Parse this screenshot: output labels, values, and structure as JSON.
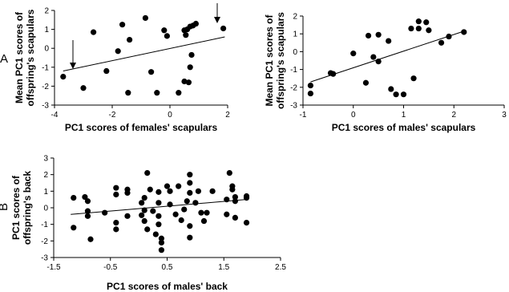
{
  "chart_data": [
    {
      "type": "scatter",
      "panel_label": "A",
      "xlabel": "PC1 scores of females' scapulars",
      "ylabel": [
        "Mean PC1 scores of",
        "offspring's scapulars"
      ],
      "xlim": [
        -4,
        2
      ],
      "xticks": [
        -4,
        -2,
        0,
        2
      ],
      "ylim": [
        -3,
        2
      ],
      "yticks": [
        -3,
        -2,
        -1,
        0,
        1,
        2
      ],
      "color": "#000000",
      "x": [
        -3.7,
        -3.0,
        -2.65,
        -2.2,
        -1.8,
        -1.65,
        -1.4,
        -1.45,
        -0.85,
        -0.65,
        -0.45,
        -0.2,
        -0.1,
        0.3,
        0.5,
        0.55,
        0.6,
        0.5,
        0.65,
        0.7,
        0.8,
        0.9,
        0.75,
        0.7,
        1.85
      ],
      "values": [
        -1.5,
        -2.1,
        0.85,
        -1.2,
        -0.15,
        1.25,
        0.45,
        -2.35,
        1.6,
        -1.25,
        -2.35,
        0.95,
        0.65,
        -2.35,
        0.95,
        0.7,
        1.0,
        -1.75,
        -1.8,
        1.15,
        1.2,
        1.3,
        -0.35,
        -1.0,
        1.05
      ],
      "trend_line": {
        "x": [
          -3.7,
          1.9
        ],
        "values": [
          -1.2,
          0.6
        ]
      }
    },
    {
      "type": "scatter",
      "xlabel": "PC1 scores of males' scapulars",
      "ylabel": [
        "Mean PC1 scores of",
        "offspring's scapulars"
      ],
      "xlim": [
        -1,
        3
      ],
      "xticks": [
        -1,
        0,
        1,
        2,
        3
      ],
      "ylim": [
        -3,
        2
      ],
      "yticks": [
        -3,
        -2,
        -1,
        0,
        1,
        2
      ],
      "color": "#000000",
      "x": [
        -0.85,
        -0.85,
        -0.45,
        -0.4,
        0,
        0.25,
        0.3,
        0.5,
        0.4,
        0.5,
        0.7,
        0.75,
        0.85,
        1.0,
        1.2,
        1.15,
        1.3,
        1.3,
        1.45,
        1.5,
        1.75,
        1.9,
        2.2
      ],
      "values": [
        -1.9,
        -2.35,
        -1.2,
        -1.25,
        -0.1,
        -1.75,
        0.9,
        0.95,
        -0.3,
        -0.55,
        0.6,
        -2.1,
        -2.4,
        -2.4,
        -1.5,
        1.3,
        1.7,
        1.3,
        1.65,
        1.2,
        0.5,
        0.85,
        1.1
      ],
      "trend_line": {
        "x": [
          -0.85,
          2.2
        ],
        "values": [
          -1.7,
          1.15
        ]
      }
    },
    {
      "type": "scatter",
      "panel_label": "B",
      "xlabel": "PC1 scores of males' back",
      "ylabel": [
        "PC1 scores of",
        "offspring's back"
      ],
      "xlim": [
        -1.5,
        2.5
      ],
      "xticks": [
        -1.5,
        -0.5,
        0.5,
        1.5,
        2.5
      ],
      "ylim": [
        -3,
        3
      ],
      "yticks": [
        -3,
        -2,
        -1,
        0,
        1,
        2,
        3
      ],
      "color": "#000000",
      "x": [
        -1.15,
        -1.15,
        -0.95,
        -0.9,
        -0.9,
        -0.9,
        -0.85,
        -0.6,
        -0.4,
        -0.4,
        -0.4,
        -0.4,
        -0.2,
        -0.2,
        -0.2,
        0.05,
        0.05,
        0.1,
        0.1,
        0.1,
        0.15,
        0.15,
        0.2,
        0.25,
        0.3,
        0.35,
        0.35,
        0.35,
        0.35,
        0.4,
        0.4,
        0.4,
        0.5,
        0.55,
        0.55,
        0.65,
        0.7,
        0.75,
        0.8,
        0.85,
        0.9,
        0.9,
        0.9,
        0.9,
        0.9,
        1.0,
        1.05,
        1.1,
        1.15,
        1.2,
        1.3,
        1.55,
        1.55,
        1.6,
        1.65,
        1.65,
        1.7,
        1.7,
        1.7,
        1.9,
        1.9,
        1.9
      ],
      "values": [
        0.6,
        -1.2,
        0.65,
        0.4,
        -0.2,
        -0.5,
        -1.9,
        -0.3,
        1.2,
        0.8,
        -0.9,
        -1.3,
        1.1,
        0.9,
        -0.5,
        0.3,
        -0.45,
        0.6,
        -0.15,
        -0.8,
        2.1,
        -1.3,
        1.1,
        -0.2,
        -1.6,
        0.95,
        0.3,
        -0.5,
        -1.0,
        -1.85,
        -2.1,
        -2.55,
        1.3,
        1.0,
        0.2,
        -0.4,
        1.3,
        -0.75,
        -0.1,
        0.4,
        2.0,
        1.5,
        0.9,
        -1.1,
        -1.8,
        0.3,
        1.0,
        -0.3,
        -0.8,
        -0.3,
        1.0,
        -0.4,
        0.5,
        2.1,
        1.3,
        1.1,
        0.65,
        0.4,
        -0.6,
        0.7,
        0.6,
        -0.9
      ],
      "trend_line": {
        "x": [
          -1.2,
          1.9
        ],
        "values": [
          -0.4,
          0.5
        ]
      }
    }
  ]
}
